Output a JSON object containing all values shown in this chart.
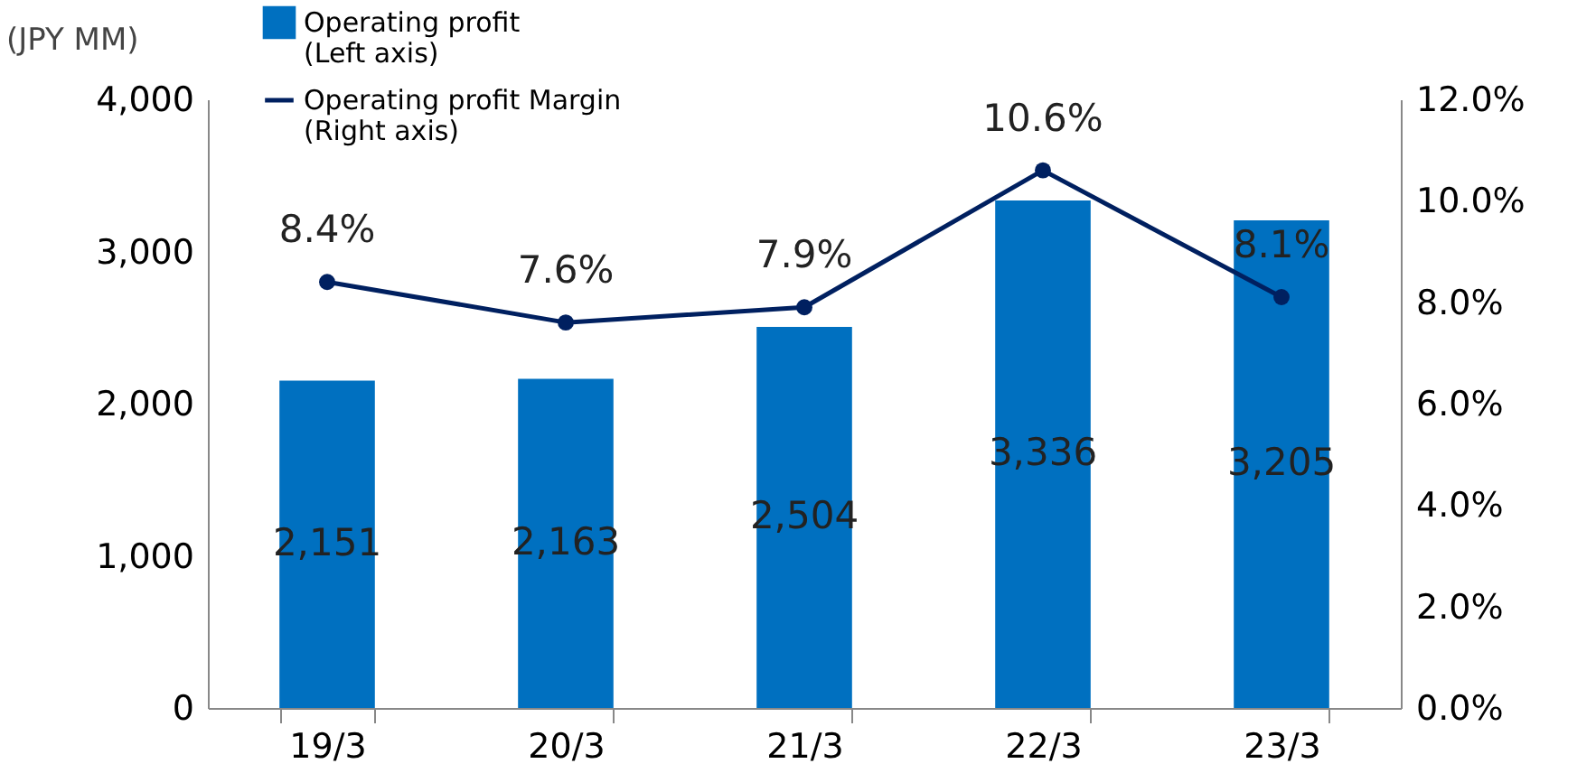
{
  "chart_data": {
    "type": "bar",
    "ylabel": "(JPY MM)",
    "categories": [
      "19/3",
      "20/3",
      "21/3",
      "22/3",
      "23/3"
    ],
    "series": [
      {
        "name": "Operating profit (Left axis)",
        "color": "#0070c0",
        "values": [
          2151,
          2163,
          2504,
          3336,
          3205
        ],
        "value_labels": [
          "2,151",
          "2,163",
          "2,504",
          "3,336",
          "3,205"
        ]
      },
      {
        "name": "Operating profit Margin (Right axis)",
        "type": "line",
        "axis": "y2",
        "color": "#002060",
        "values": [
          8.4,
          7.6,
          7.9,
          10.6,
          8.1
        ],
        "value_labels": [
          "8.4%",
          "7.6%",
          "7.9%",
          "10.6%",
          "8.1%"
        ]
      }
    ],
    "ylim": [
      0,
      4000
    ],
    "yticks": [
      0,
      {
        "value": 1000,
        "label": "1,000"
      },
      {
        "value": 2000,
        "label": "2,000"
      },
      {
        "value": 3000,
        "label": "3,000"
      },
      {
        "value": 4000,
        "label": "4,000"
      }
    ],
    "y2lim": [
      0,
      12
    ],
    "y2ticks": [
      {
        "value": 0,
        "label": "0.0%"
      },
      {
        "value": 2,
        "label": "2.0%"
      },
      {
        "value": 4,
        "label": "4.0%"
      },
      {
        "value": 6,
        "label": "6.0%"
      },
      {
        "value": 8,
        "label": "8.0%"
      },
      {
        "value": 10,
        "label": "10.0%"
      },
      {
        "value": 12,
        "label": "12.0%"
      }
    ],
    "grid": false,
    "legend": "top left",
    "marker": "circle",
    "line_style": "solid"
  }
}
